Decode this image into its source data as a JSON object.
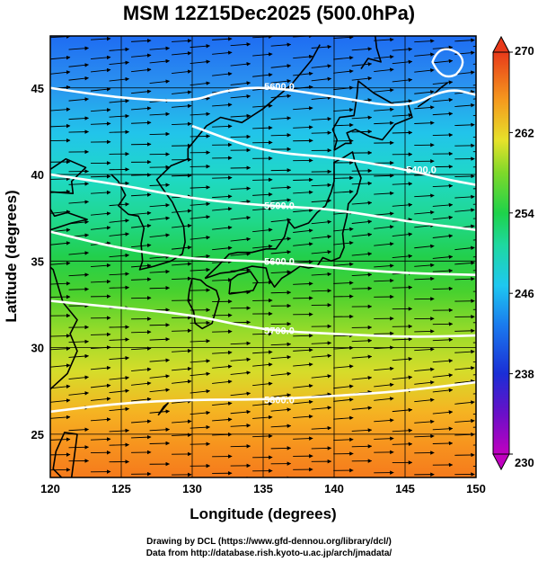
{
  "title": "MSM 12Z15Dec2025 (500.0hPa)",
  "credits": {
    "line1": "Drawing by DCL (https://www.gfd-dennou.org/library/dcl/)",
    "line2": "Data from http://database.rish.kyoto-u.ac.jp/arch/jmadata/"
  },
  "chart_data": {
    "type": "heatmap",
    "title": "MSM 12Z15Dec2025 (500.0hPa)",
    "xlabel": "Longitude (degrees)",
    "ylabel": "Latitude  (degrees)",
    "xlim": [
      120,
      150
    ],
    "ylim": [
      22.5,
      48
    ],
    "x_ticks": [
      120,
      125,
      130,
      135,
      140,
      145,
      150
    ],
    "y_ticks": [
      25,
      30,
      35,
      40,
      45
    ],
    "grid": true,
    "color_variable_range": [
      230,
      270
    ],
    "colorbar_ticks": [
      230,
      238,
      246,
      254,
      262,
      270
    ],
    "colorbar_placement": "right",
    "height_contours": [
      {
        "label": "5600.0",
        "points": [
          [
            120,
            45.0
          ],
          [
            125,
            44.4
          ],
          [
            130,
            44.2
          ],
          [
            132,
            44.8
          ],
          [
            135,
            45.1
          ],
          [
            140,
            44.5
          ],
          [
            145,
            43.8
          ],
          [
            148,
            45.0
          ],
          [
            150,
            44.6
          ]
        ]
      },
      {
        "label": "5400.0",
        "points": [
          [
            130,
            42.8
          ],
          [
            135,
            41.3
          ],
          [
            140,
            41.0
          ],
          [
            145,
            40.3
          ],
          [
            148,
            39.7
          ],
          [
            150,
            39.4
          ]
        ]
      },
      {
        "label": "5500.0",
        "points": [
          [
            120,
            40.0
          ],
          [
            125,
            39.4
          ],
          [
            130,
            38.6
          ],
          [
            135,
            38.2
          ],
          [
            140,
            38.0
          ],
          [
            145,
            37.3
          ],
          [
            150,
            36.8
          ]
        ]
      },
      {
        "label": "5600.0",
        "points": [
          [
            120,
            36.7
          ],
          [
            125,
            35.7
          ],
          [
            130,
            35.1
          ],
          [
            135,
            35.0
          ],
          [
            140,
            34.6
          ],
          [
            145,
            34.3
          ],
          [
            150,
            34.2
          ]
        ]
      },
      {
        "label": "5700.0",
        "points": [
          [
            120,
            32.7
          ],
          [
            125,
            32.3
          ],
          [
            130,
            31.9
          ],
          [
            135,
            31.0
          ],
          [
            140,
            30.8
          ],
          [
            145,
            30.6
          ],
          [
            150,
            30.7
          ]
        ]
      },
      {
        "label": "5800.0",
        "points": [
          [
            120,
            26.3
          ],
          [
            125,
            26.8
          ],
          [
            130,
            27.0
          ],
          [
            135,
            27.0
          ],
          [
            140,
            27.2
          ],
          [
            145,
            27.5
          ],
          [
            150,
            28.0
          ]
        ]
      }
    ]
  }
}
